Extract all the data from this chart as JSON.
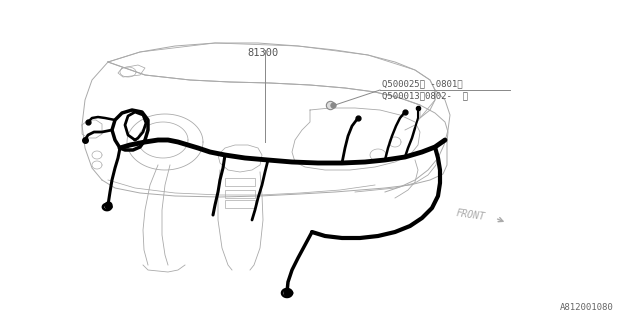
{
  "bg_color": "#ffffff",
  "line_color": "#000000",
  "thin_line_color": "#aaaaaa",
  "label_81300": "81300",
  "label_q1": "Q500025（ -0801）",
  "label_q2": "Q500013（0802-  ）",
  "label_front": "FRONT",
  "label_part": "A812001080",
  "font_size_label": 7.5,
  "font_size_part": 7
}
